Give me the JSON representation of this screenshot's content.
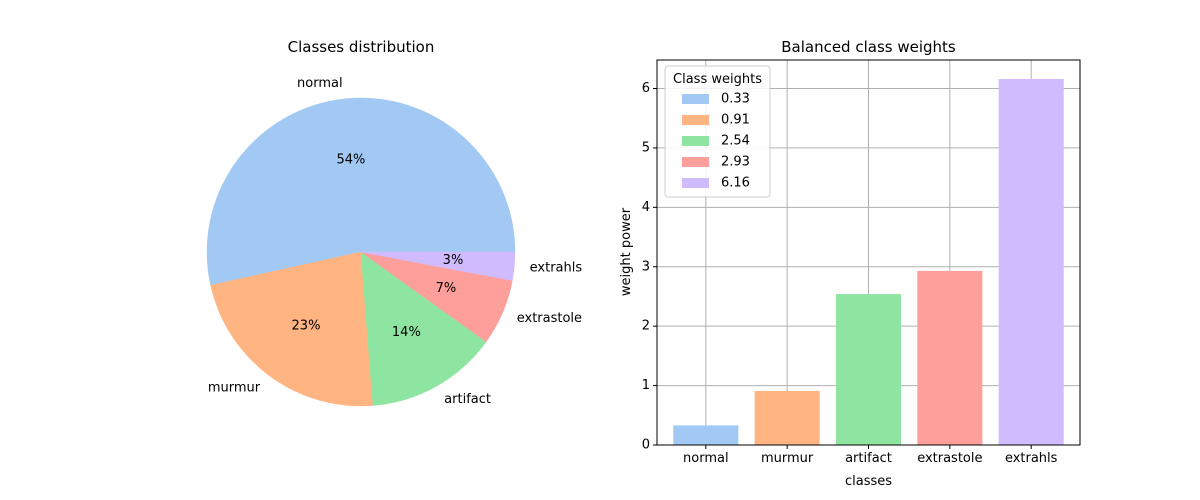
{
  "chart_data": [
    {
      "type": "pie",
      "title": "Classes distribution",
      "slices": [
        {
          "label": "normal",
          "percent": 54,
          "percent_label": "54%",
          "color": "#a1c9f4"
        },
        {
          "label": "murmur",
          "percent": 23,
          "percent_label": "23%",
          "color": "#ffb482"
        },
        {
          "label": "artifact",
          "percent": 14,
          "percent_label": "14%",
          "color": "#8de5a1"
        },
        {
          "label": "extrastole",
          "percent": 7,
          "percent_label": "7%",
          "color": "#ff9f9b"
        },
        {
          "label": "extrahls",
          "percent": 3,
          "percent_label": "3%",
          "color": "#d0bbff"
        }
      ]
    },
    {
      "type": "bar",
      "title": "Balanced class weights",
      "xlabel": "classes",
      "ylabel": "weight power",
      "categories": [
        "normal",
        "murmur",
        "artifact",
        "extrastole",
        "extrahls"
      ],
      "values": [
        0.33,
        0.91,
        2.54,
        2.93,
        6.16
      ],
      "colors": [
        "#a1c9f4",
        "#ffb482",
        "#8de5a1",
        "#ff9f9b",
        "#d0bbff"
      ],
      "ylim": [
        0,
        6.48
      ],
      "yticks": [
        0,
        1,
        2,
        3,
        4,
        5,
        6
      ],
      "grid": true,
      "legend": {
        "title": "Class weights",
        "placement": "top-left",
        "entries": [
          "0.33",
          "0.91",
          "2.54",
          "2.93",
          "6.16"
        ]
      }
    }
  ]
}
